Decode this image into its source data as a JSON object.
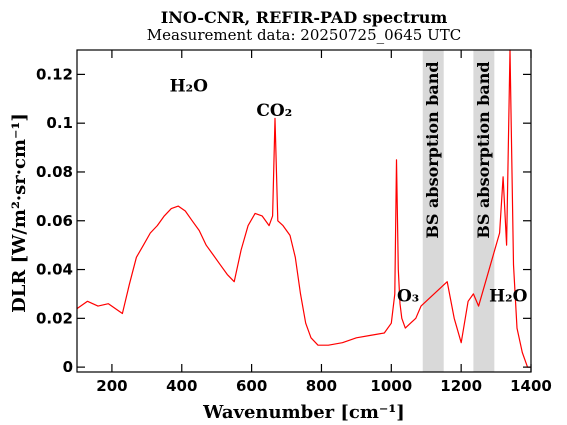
{
  "chart_data": {
    "type": "line",
    "title": "INO-CNR, REFIR-PAD spectrum",
    "subtitle": "Measurement data: 20250725_0645 UTC",
    "xlabel": "Wavenumber [cm⁻¹]",
    "ylabel": "DLR [W/m²·sr·cm⁻¹]",
    "xlim": [
      100,
      1400
    ],
    "ylim": [
      -0.002,
      0.13
    ],
    "x_ticks": [
      200,
      400,
      600,
      800,
      1000,
      1200,
      1400
    ],
    "y_ticks": [
      0,
      0.02,
      0.04,
      0.06,
      0.08,
      0.1,
      0.12
    ],
    "x_tick_labels": [
      "200",
      "400",
      "600",
      "800",
      "1000",
      "1200",
      "1400"
    ],
    "y_tick_labels": [
      "0",
      "0.02",
      "0.04",
      "0.06",
      "0.08",
      "0.1",
      "0.12"
    ],
    "grid": false,
    "line_color": "#ff0000",
    "band_color": "#d9d9d9",
    "series": [
      {
        "x": [
          100,
          130,
          160,
          190,
          210,
          230,
          250,
          270,
          290,
          310,
          330,
          350,
          370,
          390,
          410,
          430,
          450,
          470,
          490,
          510,
          530,
          550,
          570,
          590,
          610,
          630,
          650,
          660,
          667,
          675,
          690,
          710,
          725,
          740,
          755,
          770,
          790,
          820,
          860,
          900,
          940,
          980,
          1000,
          1010,
          1015,
          1020,
          1025,
          1030,
          1040,
          1055,
          1070,
          1085,
          1160,
          1180,
          1200,
          1220,
          1235,
          1250,
          1310,
          1320,
          1330,
          1340,
          1350,
          1360,
          1375,
          1390,
          1400
        ],
        "y": [
          0.024,
          0.027,
          0.025,
          0.026,
          0.024,
          0.022,
          0.034,
          0.045,
          0.05,
          0.055,
          0.058,
          0.062,
          0.065,
          0.066,
          0.064,
          0.06,
          0.056,
          0.05,
          0.046,
          0.042,
          0.038,
          0.035,
          0.048,
          0.058,
          0.063,
          0.062,
          0.058,
          0.062,
          0.102,
          0.06,
          0.058,
          0.054,
          0.045,
          0.03,
          0.018,
          0.012,
          0.009,
          0.009,
          0.01,
          0.012,
          0.013,
          0.014,
          0.018,
          0.03,
          0.085,
          0.04,
          0.026,
          0.02,
          0.016,
          0.018,
          0.02,
          0.025,
          0.035,
          0.02,
          0.01,
          0.027,
          0.03,
          0.025,
          0.055,
          0.078,
          0.05,
          0.13,
          0.042,
          0.016,
          0.006,
          0.0,
          0.0
        ]
      }
    ],
    "bands": [
      {
        "x0": 1090,
        "x1": 1150,
        "label": "BS absorption band"
      },
      {
        "x0": 1235,
        "x1": 1295,
        "label": "BS absorption band"
      }
    ],
    "annotations": [
      {
        "text": "H₂O",
        "x": 420,
        "y": 0.113
      },
      {
        "text": "CO₂",
        "x": 665,
        "y": 0.103
      },
      {
        "text": "O₃",
        "x": 1048,
        "y": 0.027
      },
      {
        "text": "H₂O",
        "x": 1335,
        "y": 0.027
      }
    ]
  }
}
